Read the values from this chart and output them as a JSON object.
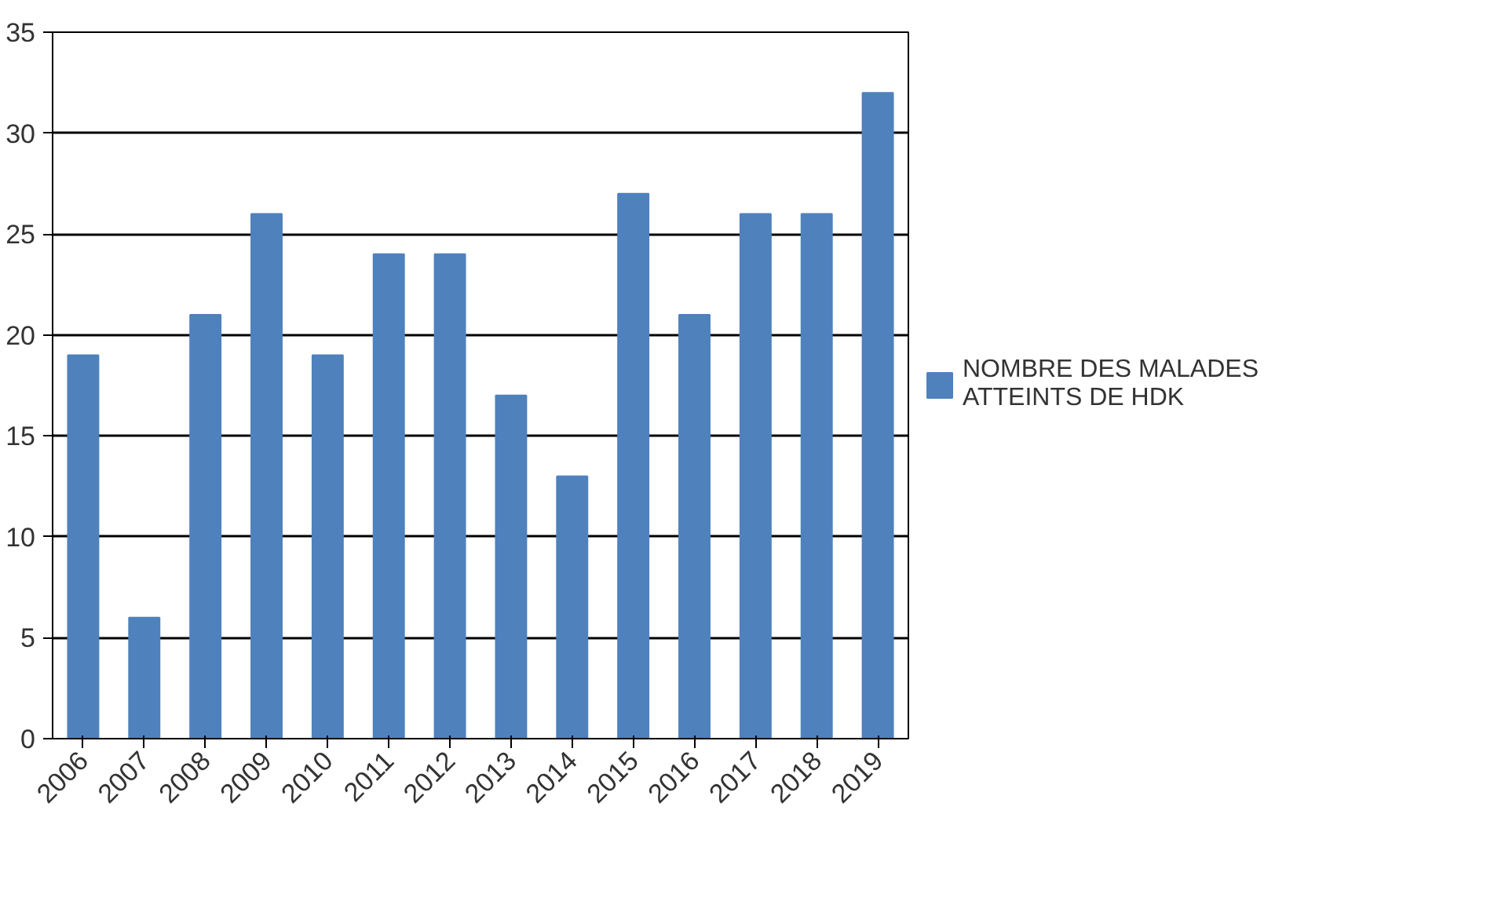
{
  "chart_data": {
    "type": "bar",
    "categories": [
      "2006",
      "2007",
      "2008",
      "2009",
      "2010",
      "2011",
      "2012",
      "2013",
      "2014",
      "2015",
      "2016",
      "2017",
      "2018",
      "2019"
    ],
    "series": [
      {
        "name": "NOMBRE DES MALADES ATTEINTS DE HDK",
        "color": "#4f81bd",
        "values": [
          19,
          6,
          21,
          26,
          19,
          24,
          24,
          17,
          13,
          27,
          21,
          26,
          26,
          32
        ]
      }
    ],
    "ylim": [
      0,
      35
    ],
    "yticks": [
      0,
      5,
      10,
      15,
      20,
      25,
      30,
      35
    ],
    "grid": "y",
    "legend": "right"
  }
}
